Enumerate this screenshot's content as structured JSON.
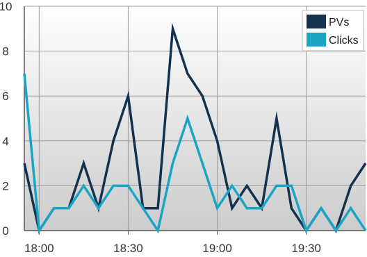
{
  "chart_data": {
    "type": "line",
    "title": "",
    "xlabel": "",
    "ylabel": "",
    "x": [
      "17:55",
      "18:00",
      "18:05",
      "18:10",
      "18:15",
      "18:20",
      "18:25",
      "18:30",
      "18:35",
      "18:40",
      "18:45",
      "18:50",
      "18:55",
      "19:00",
      "19:05",
      "19:10",
      "19:15",
      "19:20",
      "19:25",
      "19:30",
      "19:35",
      "19:40",
      "19:45",
      "19:50"
    ],
    "x_ticks": [
      "18:00",
      "18:30",
      "19:00",
      "19:30"
    ],
    "y_ticks": [
      "0",
      "2",
      "4",
      "6",
      "8",
      "10"
    ],
    "ylim": [
      0,
      10
    ],
    "grid": true,
    "legend_position": "top-right",
    "series": [
      {
        "name": "PVs",
        "color": "#14314f",
        "values": [
          3,
          0,
          1,
          1,
          3,
          1,
          4,
          6,
          1,
          1,
          9,
          7,
          6,
          4,
          1,
          2,
          1,
          5,
          1,
          0,
          1,
          0,
          2,
          3
        ]
      },
      {
        "name": "Clicks",
        "color": "#1aa6c2",
        "values": [
          7,
          0,
          1,
          1,
          2,
          1,
          2,
          2,
          1,
          0,
          3,
          5,
          3,
          1,
          2,
          1,
          1,
          2,
          2,
          0,
          1,
          0,
          1,
          0
        ]
      }
    ]
  }
}
